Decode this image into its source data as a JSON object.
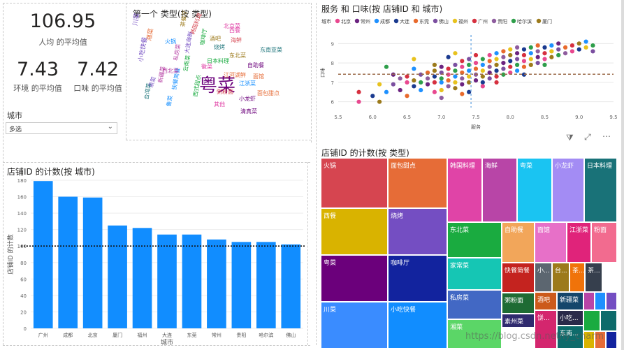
{
  "cards": [
    {
      "value": "106.95",
      "label": "人均 的平均值"
    },
    {
      "value": "7.43",
      "label": "环境 的平均值"
    },
    {
      "value": "7.42",
      "label": "口味 的平均值"
    }
  ],
  "slicer": {
    "title": "城市",
    "value": "多选"
  },
  "wordcloud": {
    "title": "第一个 类型(按 类型)",
    "words": [
      "粤菜",
      "川菜",
      "湘菜",
      "火锅",
      "西餐",
      "日本料理",
      "韩国料理",
      "烧烤",
      "私房菜",
      "东北菜",
      "自助餐",
      "小吃快餐",
      "面馆",
      "江浙菜",
      "北京菜",
      "咖啡厅",
      "海鲜",
      "东南亚菜",
      "新疆菜",
      "茶餐厅",
      "小龙虾",
      "素菜",
      "面包甜点",
      "快餐简餐",
      "徽菜",
      "云南菜",
      "粥粉面",
      "台湾菜",
      "西北菜",
      "酒吧",
      "清真菜",
      "大连海鲜",
      "江河湖鲜",
      "鲁菜",
      "其他",
      "西式甜点"
    ]
  },
  "charts": [
    {
      "type": "scatter",
      "title": "服务 和 口味(按 店铺ID 和 城市)",
      "legend_title": "城市",
      "legend": [
        {
          "name": "北京",
          "color": "#E8488F"
        },
        {
          "name": "常州",
          "color": "#6B2380"
        },
        {
          "name": "成都",
          "color": "#1E90FF"
        },
        {
          "name": "大连",
          "color": "#1A3A8F"
        },
        {
          "name": "东莞",
          "color": "#E86A2C"
        },
        {
          "name": "佛山",
          "color": "#7B4FA0"
        },
        {
          "name": "福州",
          "color": "#E8C21E"
        },
        {
          "name": "广州",
          "color": "#D6303F"
        },
        {
          "name": "贵阳",
          "color": "#8E5C9E"
        },
        {
          "name": "哈尔滨",
          "color": "#2E9E4A"
        },
        {
          "name": "厦门",
          "color": "#9C7A1B"
        }
      ],
      "xlabel": "服务",
      "ylabel": "口味",
      "xlim": [
        5.5,
        9.5
      ],
      "ylim": [
        5.7,
        9.3
      ],
      "x_ticks": [
        "5.5",
        "6.0",
        "6.5",
        "7.0",
        "7.5",
        "8.0",
        "8.5",
        "9.0",
        "9.5"
      ],
      "y_ticks": [
        "6",
        "7",
        "8",
        "9"
      ],
      "x_avg": 7.43,
      "y_avg": 7.42,
      "points": [
        [
          5.8,
          6.0
        ],
        [
          5.8,
          6.5
        ],
        [
          6.0,
          6.3
        ],
        [
          6.1,
          6.0
        ],
        [
          6.1,
          6.9
        ],
        [
          6.2,
          6.5
        ],
        [
          6.2,
          7.8
        ],
        [
          6.3,
          6.9
        ],
        [
          6.4,
          6.6
        ],
        [
          6.4,
          7.2
        ],
        [
          6.5,
          6.3
        ],
        [
          6.5,
          7.0
        ],
        [
          6.5,
          7.3
        ],
        [
          6.6,
          6.8
        ],
        [
          6.6,
          7.1
        ],
        [
          6.6,
          8.2
        ],
        [
          6.7,
          6.6
        ],
        [
          6.7,
          7.0
        ],
        [
          6.7,
          7.4
        ],
        [
          6.8,
          6.9
        ],
        [
          6.8,
          7.2
        ],
        [
          6.8,
          7.5
        ],
        [
          6.9,
          6.5
        ],
        [
          6.9,
          7.0
        ],
        [
          6.9,
          7.3
        ],
        [
          6.9,
          7.6
        ],
        [
          7.0,
          6.6
        ],
        [
          7.0,
          7.0
        ],
        [
          7.0,
          7.2
        ],
        [
          7.0,
          7.5
        ],
        [
          7.0,
          7.8
        ],
        [
          7.1,
          6.8
        ],
        [
          7.1,
          7.1
        ],
        [
          7.1,
          7.4
        ],
        [
          7.1,
          7.7
        ],
        [
          7.1,
          8.3
        ],
        [
          7.2,
          6.7
        ],
        [
          7.2,
          7.0
        ],
        [
          7.2,
          7.3
        ],
        [
          7.2,
          7.6
        ],
        [
          7.2,
          7.9
        ],
        [
          7.3,
          6.9
        ],
        [
          7.3,
          7.2
        ],
        [
          7.3,
          7.5
        ],
        [
          7.3,
          7.8
        ],
        [
          7.3,
          8.1
        ],
        [
          7.4,
          6.5
        ],
        [
          7.4,
          7.0
        ],
        [
          7.4,
          7.3
        ],
        [
          7.4,
          7.6
        ],
        [
          7.4,
          7.9
        ],
        [
          7.4,
          8.2
        ],
        [
          7.5,
          7.1
        ],
        [
          7.5,
          7.4
        ],
        [
          7.5,
          7.7
        ],
        [
          7.5,
          8.0
        ],
        [
          7.5,
          8.4
        ],
        [
          7.6,
          7.0
        ],
        [
          7.6,
          7.3
        ],
        [
          7.6,
          7.6
        ],
        [
          7.6,
          7.9
        ],
        [
          7.6,
          8.2
        ],
        [
          7.7,
          7.2
        ],
        [
          7.7,
          7.5
        ],
        [
          7.7,
          7.8
        ],
        [
          7.7,
          8.1
        ],
        [
          7.7,
          8.4
        ],
        [
          7.8,
          7.3
        ],
        [
          7.8,
          7.6
        ],
        [
          7.8,
          7.9
        ],
        [
          7.8,
          8.2
        ],
        [
          7.8,
          8.5
        ],
        [
          7.9,
          7.4
        ],
        [
          7.9,
          7.7
        ],
        [
          7.9,
          8.0
        ],
        [
          7.9,
          8.3
        ],
        [
          7.9,
          8.6
        ],
        [
          8.0,
          7.5
        ],
        [
          8.0,
          7.8
        ],
        [
          8.0,
          8.1
        ],
        [
          8.0,
          8.4
        ],
        [
          8.0,
          8.7
        ],
        [
          8.1,
          7.6
        ],
        [
          8.1,
          7.9
        ],
        [
          8.1,
          8.2
        ],
        [
          8.1,
          8.5
        ],
        [
          8.1,
          8.8
        ],
        [
          8.2,
          7.8
        ],
        [
          8.2,
          8.1
        ],
        [
          8.2,
          8.4
        ],
        [
          8.2,
          8.7
        ],
        [
          8.3,
          7.9
        ],
        [
          8.3,
          8.2
        ],
        [
          8.3,
          8.5
        ],
        [
          8.3,
          8.8
        ],
        [
          8.4,
          8.0
        ],
        [
          8.4,
          8.3
        ],
        [
          8.4,
          8.6
        ],
        [
          8.4,
          8.9
        ],
        [
          8.5,
          8.2
        ],
        [
          8.5,
          8.5
        ],
        [
          8.5,
          8.8
        ],
        [
          8.6,
          8.3
        ],
        [
          8.6,
          8.6
        ],
        [
          8.6,
          8.9
        ],
        [
          8.7,
          8.4
        ],
        [
          8.7,
          8.7
        ],
        [
          8.7,
          9.0
        ],
        [
          8.8,
          8.5
        ],
        [
          8.8,
          8.8
        ],
        [
          8.9,
          8.6
        ],
        [
          8.9,
          8.9
        ],
        [
          9.0,
          8.7
        ],
        [
          9.0,
          9.0
        ],
        [
          9.1,
          8.8
        ],
        [
          9.1,
          9.1
        ],
        [
          9.2,
          8.9
        ],
        [
          9.2,
          8.6
        ],
        [
          6.3,
          7.4
        ],
        [
          7.0,
          6.2
        ],
        [
          7.3,
          6.4
        ],
        [
          7.6,
          6.8
        ],
        [
          7.8,
          7.0
        ],
        [
          8.2,
          7.4
        ],
        [
          6.9,
          7.9
        ],
        [
          7.2,
          8.5
        ],
        [
          6.6,
          7.7
        ],
        [
          8.5,
          7.9
        ]
      ]
    },
    {
      "type": "bar",
      "title": "店铺ID 的计数(按 城市)",
      "xlabel": "城市",
      "ylabel": "店铺ID 的计数",
      "categories": [
        "广州",
        "成都",
        "北京",
        "厦门",
        "福州",
        "大连",
        "东莞",
        "常州",
        "贵阳",
        "哈尔滨",
        "佛山"
      ],
      "values": [
        179,
        160,
        159,
        125,
        122,
        114,
        114,
        108,
        105,
        105,
        102
      ],
      "ylim": [
        0,
        180
      ],
      "y_ticks": [
        "0",
        "20",
        "40",
        "60",
        "80",
        "100",
        "120",
        "140",
        "160",
        "180"
      ],
      "avg_line": 100,
      "bar_color": "#118DFF"
    },
    {
      "type": "treemap",
      "title": "店铺ID 的计数(按 类型)",
      "cells": [
        {
          "label": "火锅",
          "color": "#D64550"
        },
        {
          "label": "西餐",
          "color": "#D9B300"
        },
        {
          "label": "粤菜",
          "color": "#6B007B"
        },
        {
          "label": "川菜",
          "color": "#3A8CFF"
        },
        {
          "label": "面包甜点",
          "color": "#E66C37"
        },
        {
          "label": "烧烤",
          "color": "#744EC2"
        },
        {
          "label": "咖啡厅",
          "color": "#12239E"
        },
        {
          "label": "小吃快餐",
          "color": "#118DFF"
        },
        {
          "label": "韩国料理",
          "color": "#E044A7"
        },
        {
          "label": "海鲜",
          "color": "#B845A7"
        },
        {
          "label": "粤菜",
          "color": "#1AC4F2"
        },
        {
          "label": "小龙虾",
          "color": "#A38CF4"
        },
        {
          "label": "日本料理",
          "color": "#197278"
        },
        {
          "label": "东北菜",
          "color": "#1AAB40"
        },
        {
          "label": "家常菜",
          "color": "#15C6B4"
        },
        {
          "label": "私房菜",
          "color": "#4268C4"
        },
        {
          "label": "湘菜",
          "color": "#5BD667"
        },
        {
          "label": "自助餐",
          "color": "#F2A65A"
        },
        {
          "label": "面馆",
          "color": "#E770C8"
        },
        {
          "label": "江浙菜",
          "color": "#E0237A"
        },
        {
          "label": "粉面",
          "color": "#F26B8F"
        },
        {
          "label": "快餐简餐",
          "color": "#C4231F"
        },
        {
          "label": "粥粉面",
          "color": "#1E6B34"
        },
        {
          "label": "素州菜",
          "color": "#2F2A6E"
        },
        {
          "label": "小...",
          "color": "#5C6670"
        },
        {
          "label": "台...",
          "color": "#9C7A1B"
        },
        {
          "label": "茶...",
          "color": "#F0730A"
        },
        {
          "label": "茶...",
          "color": "#363F4D"
        },
        {
          "label": "酒吧",
          "color": "#CC5A1B"
        },
        {
          "label": "新疆菜",
          "color": "#14466B"
        },
        {
          "label": "小吃...",
          "color": "#2A2A4A"
        },
        {
          "label": "东南...",
          "color": "#0E6B6B"
        },
        {
          "label": "饼...",
          "color": "#D4266E"
        }
      ]
    }
  ],
  "watermark": "https://blog.csdn.net/ly_charm"
}
